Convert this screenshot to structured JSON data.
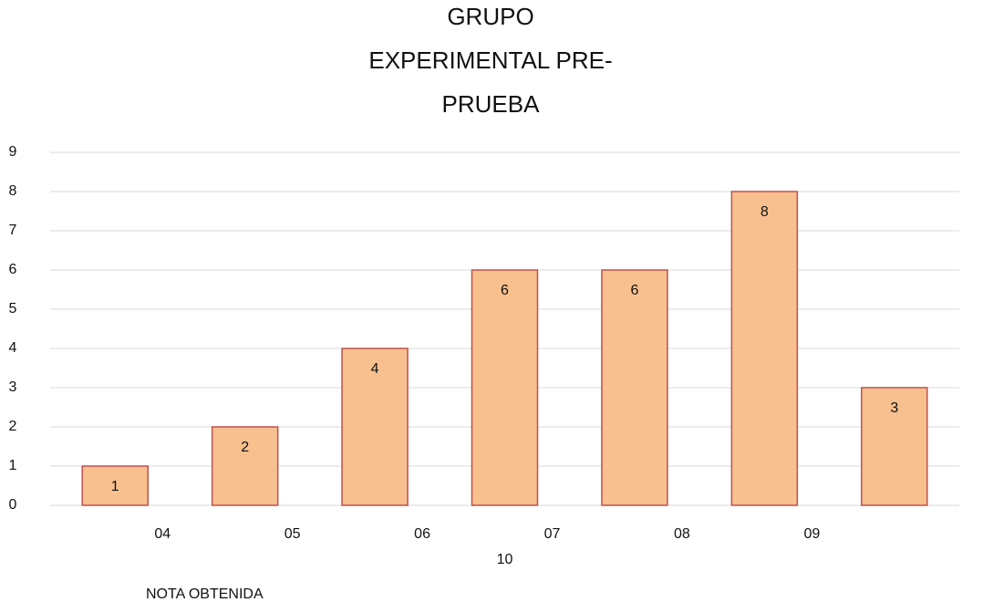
{
  "chart_data": {
    "type": "bar",
    "title": [
      "GRUPO",
      "EXPERIMENTAL PRE-",
      "PRUEBA"
    ],
    "x_label": "NOTA OBTENIDA",
    "categories": [
      "04",
      "05",
      "06",
      "07",
      "08",
      "09",
      "10"
    ],
    "values": [
      1,
      2,
      4,
      6,
      6,
      8,
      3
    ],
    "color": "#f8c08f",
    "edge_color": "#c0504d",
    "ylim": [
      0,
      9
    ],
    "yticks": [
      0,
      1,
      2,
      3,
      4,
      5,
      6,
      7,
      8,
      9
    ],
    "grid": true
  }
}
